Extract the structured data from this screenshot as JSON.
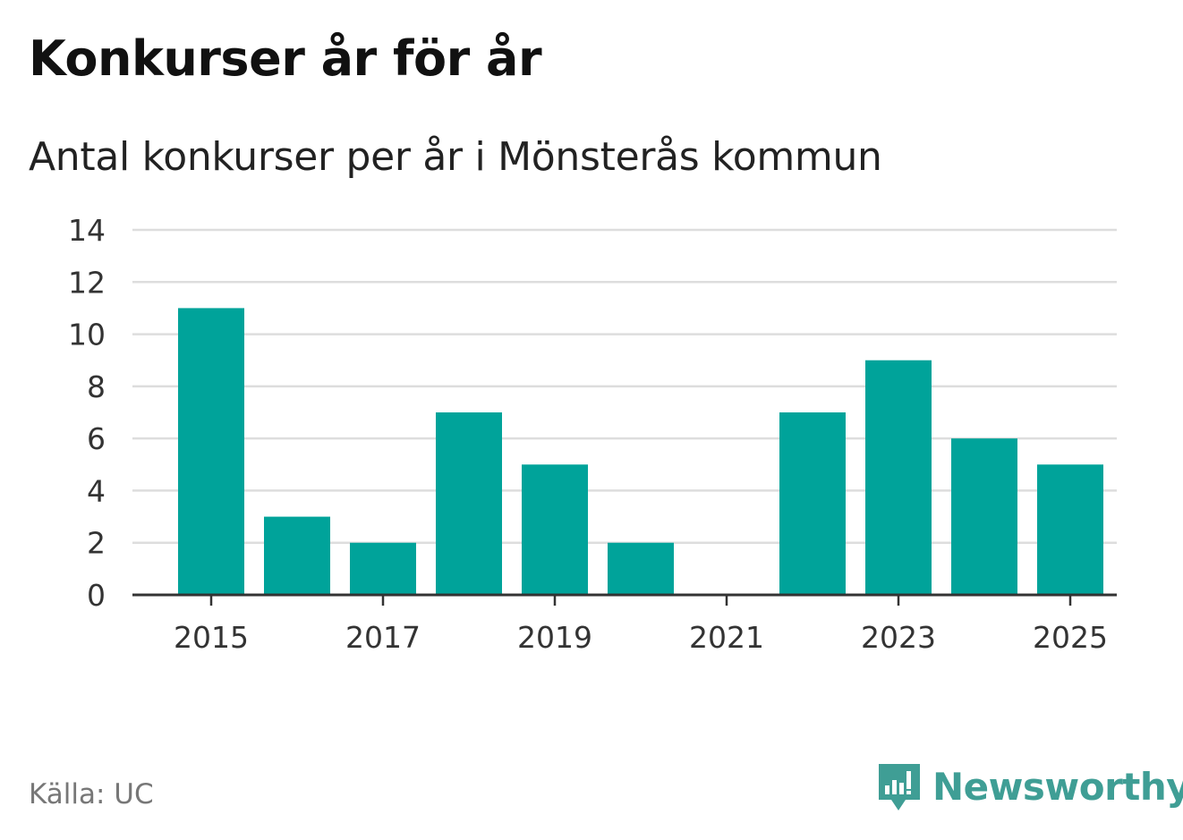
{
  "title": "Konkurser år för år",
  "source": "Källa: UC",
  "brand": {
    "name": "Newsworthy",
    "icon": "newsworthy-logo-icon"
  },
  "colors": {
    "bar": "#00a39a",
    "grid": "#dddddd",
    "axis": "#333333",
    "brand": "#3f9e95",
    "text": "#333333"
  },
  "chart_data": {
    "type": "bar",
    "title": "Antal konkurser per år i Mönsterås kommun",
    "categories": [
      "2015",
      "2016",
      "2017",
      "2018",
      "2019",
      "2020",
      "2021",
      "2022",
      "2023",
      "2024",
      "2025"
    ],
    "values": [
      11,
      3,
      2,
      7,
      5,
      2,
      0,
      7,
      9,
      6,
      5
    ],
    "x_tick_labels": [
      "2015",
      "2017",
      "2019",
      "2021",
      "2023",
      "2025"
    ],
    "y_ticks": [
      "0",
      "2",
      "4",
      "6",
      "8",
      "10",
      "12",
      "14"
    ],
    "ylim": [
      0,
      14
    ],
    "grid": true,
    "xlabel": "",
    "ylabel": ""
  }
}
